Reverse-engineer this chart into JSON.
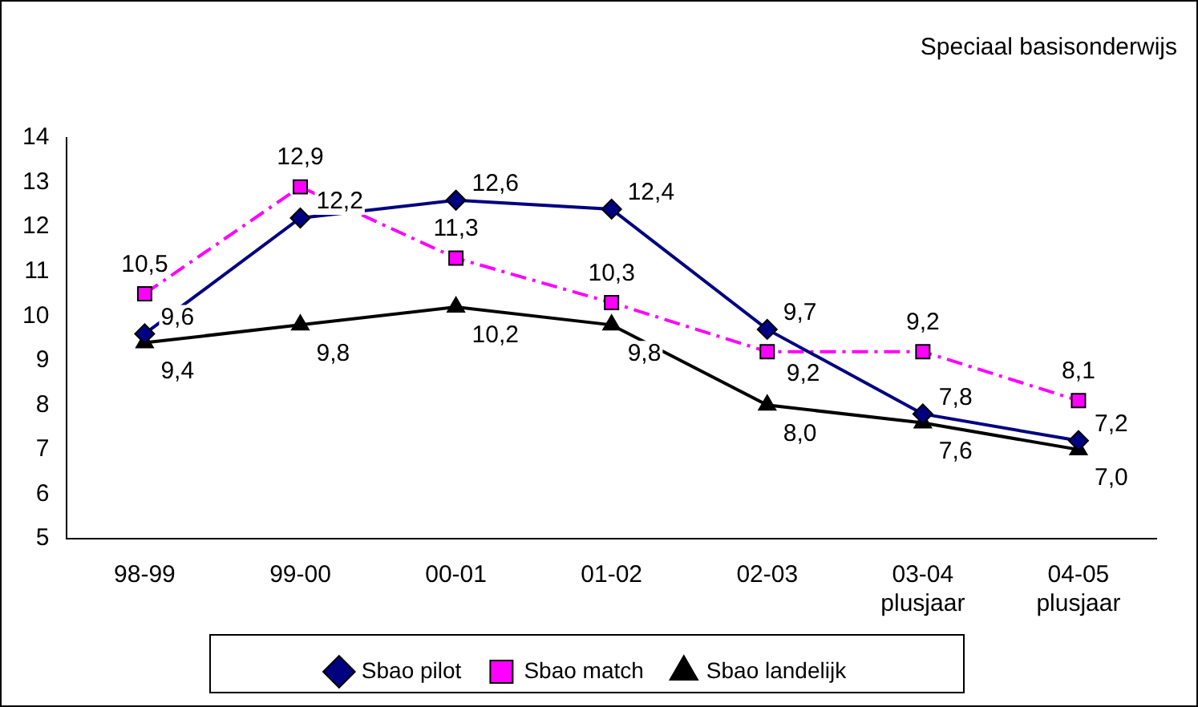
{
  "chart_data": {
    "type": "line",
    "title": "Speciaal basisonderwijs",
    "categories": [
      "98-99",
      "99-00",
      "00-01",
      "01-02",
      "02-03",
      "03-04\nplusjaar",
      "04-05\nplusjaar"
    ],
    "series": [
      {
        "name": "Sbao pilot",
        "color": "#000080",
        "values": [
          9.6,
          12.2,
          12.6,
          12.4,
          9.7,
          7.8,
          7.2
        ],
        "value_labels": [
          "9,6",
          "12,2",
          "12,6",
          "12,4",
          "9,7",
          "7,8",
          "7,2"
        ],
        "marker": "diamond",
        "line_style": "solid"
      },
      {
        "name": "Sbao match",
        "color": "#ff00ff",
        "values": [
          10.5,
          12.9,
          11.3,
          10.3,
          9.2,
          9.2,
          8.1
        ],
        "value_labels": [
          "10,5",
          "12,9",
          "11,3",
          "10,3",
          "9,2",
          "9,2",
          "8,1"
        ],
        "marker": "square",
        "line_style": "dashed"
      },
      {
        "name": "Sbao landelijk",
        "color": "#000000",
        "values": [
          9.4,
          9.8,
          10.2,
          9.8,
          8.0,
          7.6,
          7.0
        ],
        "value_labels": [
          "9,4",
          "9,8",
          "10,2",
          "9,8",
          "8,0",
          "7,6",
          "7,0"
        ],
        "marker": "triangle",
        "line_style": "solid"
      }
    ],
    "ylim": [
      5,
      14
    ],
    "yticks": [
      5,
      6,
      7,
      8,
      9,
      10,
      11,
      12,
      13,
      14
    ],
    "grid": false,
    "legend": "bottom"
  }
}
